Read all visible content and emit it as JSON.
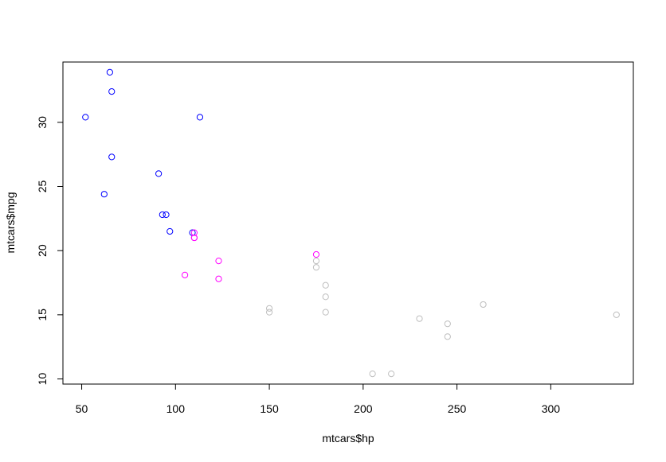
{
  "chart_data": {
    "type": "scatter",
    "title": "",
    "xlabel": "mtcars$hp",
    "ylabel": "mtcars$mpg",
    "xlim": [
      40,
      344
    ],
    "ylim": [
      9.6,
      34.7
    ],
    "xticks": [
      50,
      100,
      150,
      200,
      250,
      300
    ],
    "yticks": [
      10,
      15,
      20,
      25,
      30
    ],
    "xtick_labels": [
      "50",
      "100",
      "150",
      "200",
      "250",
      "300"
    ],
    "ytick_labels": [
      "10",
      "15",
      "20",
      "25",
      "30"
    ],
    "grid": false,
    "legend": "none",
    "marker": "open-circle",
    "series": [
      {
        "color": "#0000ff",
        "points": [
          {
            "x": 65,
            "y": 33.9
          },
          {
            "x": 66,
            "y": 32.4
          },
          {
            "x": 52,
            "y": 30.4
          },
          {
            "x": 113,
            "y": 30.4
          },
          {
            "x": 66,
            "y": 27.3
          },
          {
            "x": 91,
            "y": 26.0
          },
          {
            "x": 62,
            "y": 24.4
          },
          {
            "x": 93,
            "y": 22.8
          },
          {
            "x": 95,
            "y": 22.8
          },
          {
            "x": 97,
            "y": 21.5
          },
          {
            "x": 109,
            "y": 21.4
          }
        ]
      },
      {
        "color": "#ff00ff",
        "points": [
          {
            "x": 110,
            "y": 21.4
          },
          {
            "x": 110,
            "y": 21.0
          },
          {
            "x": 110,
            "y": 21.0
          },
          {
            "x": 175,
            "y": 19.7
          },
          {
            "x": 123,
            "y": 19.2
          },
          {
            "x": 105,
            "y": 18.1
          },
          {
            "x": 123,
            "y": 17.8
          }
        ]
      },
      {
        "color": "#bebebe",
        "points": [
          {
            "x": 175,
            "y": 19.2
          },
          {
            "x": 175,
            "y": 18.7
          },
          {
            "x": 180,
            "y": 17.3
          },
          {
            "x": 180,
            "y": 16.4
          },
          {
            "x": 264,
            "y": 15.8
          },
          {
            "x": 150,
            "y": 15.5
          },
          {
            "x": 150,
            "y": 15.2
          },
          {
            "x": 180,
            "y": 15.2
          },
          {
            "x": 335,
            "y": 15.0
          },
          {
            "x": 230,
            "y": 14.7
          },
          {
            "x": 245,
            "y": 14.3
          },
          {
            "x": 245,
            "y": 13.3
          },
          {
            "x": 205,
            "y": 10.4
          },
          {
            "x": 215,
            "y": 10.4
          }
        ]
      }
    ]
  }
}
